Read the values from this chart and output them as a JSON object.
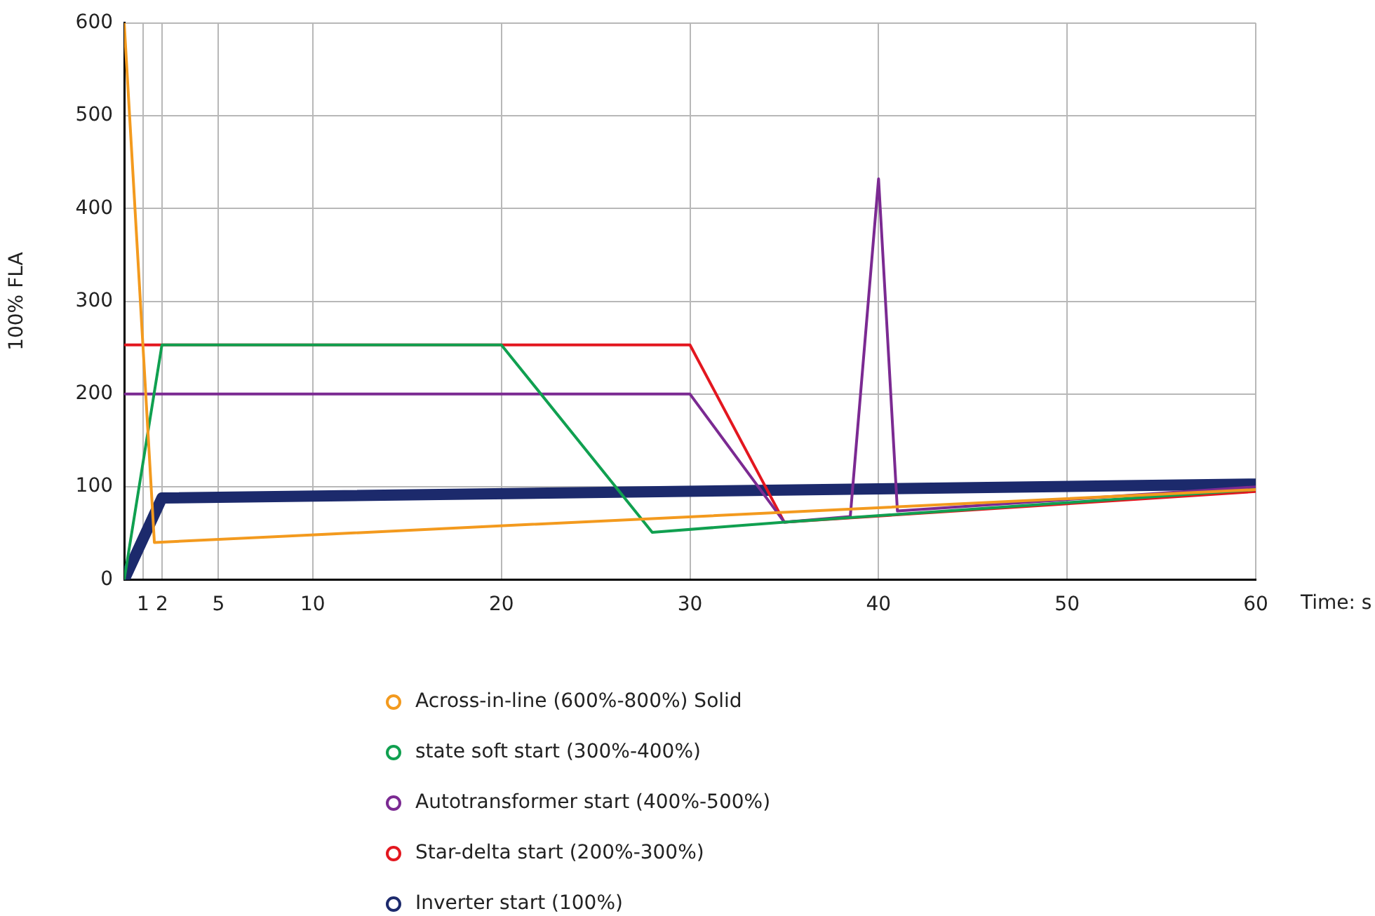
{
  "chart_data": {
    "type": "line",
    "xlabel": "Time: s",
    "ylabel": "100% FLA",
    "xlim": [
      0,
      60
    ],
    "xticks": [
      1,
      2,
      5,
      10,
      20,
      30,
      40,
      50,
      60
    ],
    "ylim": [
      0,
      600
    ],
    "yticks": [
      0,
      100,
      200,
      300,
      400,
      500,
      600
    ],
    "grid": true,
    "legend": "bottom",
    "marker": "none",
    "line_style": "solid",
    "series": [
      {
        "name": "Across-in-line (600%-800%) Solid",
        "color": "#f39a1e",
        "x": [
          0,
          1.6,
          60
        ],
        "values": [
          600,
          40,
          97
        ]
      },
      {
        "name": "state soft start (300%-400%)",
        "color": "#10a050",
        "x": [
          0,
          2,
          20,
          28,
          35,
          60
        ],
        "values": [
          0,
          253,
          253,
          51,
          62,
          97
        ]
      },
      {
        "name": "Autotransformer start (400%-500%)",
        "color": "#7b2a92",
        "x": [
          0,
          30,
          35,
          38.5,
          40,
          41,
          60
        ],
        "values": [
          200,
          200,
          62,
          68,
          432,
          74,
          100
        ]
      },
      {
        "name": "Star-delta start (200%-300%)",
        "color": "#e3171f",
        "x": [
          0,
          30,
          35,
          60
        ],
        "values": [
          253,
          253,
          62,
          95
        ]
      },
      {
        "name": "Inverter start (100%)",
        "color": "#1c2a6c",
        "x": [
          0,
          2,
          60
        ],
        "values": [
          0,
          88,
          103
        ]
      }
    ]
  }
}
